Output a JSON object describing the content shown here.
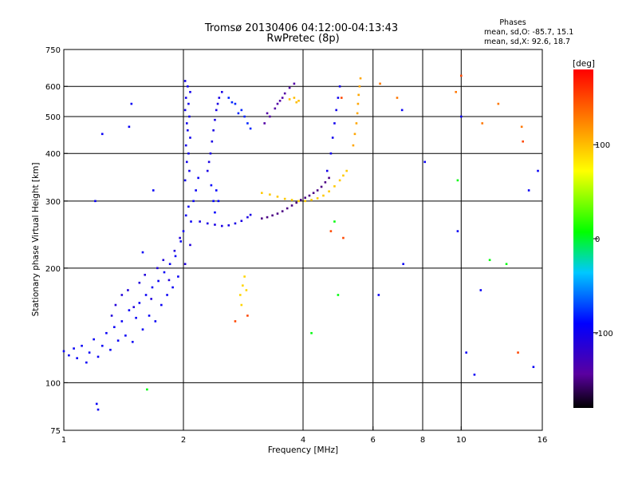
{
  "chart_data": {
    "type": "scatter",
    "title": "Tromsø 20130406 04:12:00-04:13:43",
    "subtitle": "RwPretec (8p)",
    "xlabel": "Frequency [MHz]",
    "ylabel": "Stationary phase Virtual Height [km]",
    "x_scale": "log",
    "y_scale": "log",
    "xlim": [
      1,
      16
    ],
    "ylim": [
      75,
      750
    ],
    "x_ticks": [
      {
        "value": 1,
        "label": "1"
      },
      {
        "value": 2,
        "label": "2"
      },
      {
        "value": 4,
        "label": "4"
      },
      {
        "value": 6,
        "label": "6"
      },
      {
        "value": 8,
        "label": "8"
      },
      {
        "value": 10,
        "label": "10"
      },
      {
        "value": 16,
        "label": "16"
      }
    ],
    "y_ticks": [
      {
        "value": 75,
        "label": "75"
      },
      {
        "value": 100,
        "label": "100"
      },
      {
        "value": 200,
        "label": "200"
      },
      {
        "value": 300,
        "label": "300"
      },
      {
        "value": 400,
        "label": "400"
      },
      {
        "value": 500,
        "label": "500"
      },
      {
        "value": 600,
        "label": "600"
      },
      {
        "value": 750,
        "label": "750"
      }
    ],
    "gridlines_x": [
      2,
      4,
      6,
      8,
      10
    ],
    "gridlines_y": [
      100,
      200,
      300,
      400,
      500,
      600
    ],
    "grid": true,
    "stats": {
      "heading": "Phases",
      "line_o": "mean, sd,O: -85.7, 15.1",
      "line_x": "mean, sd,X:  92.6, 18.7"
    },
    "colorbar": {
      "label": "[deg]",
      "range": [
        -180,
        180
      ],
      "ticks": [
        {
          "value": 100,
          "label": "100"
        },
        {
          "value": 0,
          "label": "0"
        },
        {
          "value": -100,
          "label": "-100"
        }
      ],
      "placement": "right"
    },
    "series": [
      {
        "phase": -95,
        "points": [
          [
            1.0,
            121
          ],
          [
            1.03,
            118
          ],
          [
            1.06,
            123
          ],
          [
            1.08,
            116
          ],
          [
            1.11,
            125
          ],
          [
            1.14,
            113
          ],
          [
            1.16,
            120
          ],
          [
            1.19,
            130
          ],
          [
            1.22,
            117
          ],
          [
            1.25,
            125
          ],
          [
            1.28,
            135
          ],
          [
            1.31,
            122
          ],
          [
            1.34,
            140
          ],
          [
            1.37,
            129
          ],
          [
            1.4,
            145
          ],
          [
            1.43,
            133
          ],
          [
            1.46,
            155
          ],
          [
            1.49,
            128
          ],
          [
            1.52,
            148
          ],
          [
            1.55,
            162
          ],
          [
            1.58,
            138
          ],
          [
            1.61,
            170
          ],
          [
            1.64,
            150
          ],
          [
            1.67,
            178
          ],
          [
            1.7,
            145
          ],
          [
            1.73,
            185
          ],
          [
            1.76,
            160
          ],
          [
            1.79,
            195
          ],
          [
            1.82,
            170
          ],
          [
            1.85,
            205
          ],
          [
            1.88,
            178
          ],
          [
            1.91,
            215
          ],
          [
            1.94,
            190
          ],
          [
            1.97,
            235
          ],
          [
            2.0,
            250
          ],
          [
            2.03,
            275
          ],
          [
            2.06,
            290
          ],
          [
            2.09,
            265
          ],
          [
            2.12,
            300
          ],
          [
            2.15,
            320
          ],
          [
            2.18,
            345
          ]
        ]
      },
      {
        "phase": -110,
        "points": [
          [
            1.32,
            150
          ],
          [
            1.35,
            160
          ],
          [
            1.4,
            170
          ],
          [
            1.45,
            175
          ],
          [
            1.5,
            158
          ],
          [
            1.55,
            183
          ],
          [
            1.6,
            192
          ],
          [
            1.66,
            166
          ],
          [
            1.72,
            200
          ],
          [
            1.78,
            210
          ],
          [
            1.84,
            186
          ],
          [
            1.9,
            222
          ],
          [
            1.96,
            240
          ],
          [
            2.02,
            205
          ],
          [
            2.08,
            230
          ]
        ]
      },
      {
        "phase": -100,
        "points": [
          [
            2.02,
            620
          ],
          [
            2.05,
            600
          ],
          [
            2.08,
            580
          ],
          [
            2.03,
            560
          ],
          [
            2.06,
            540
          ],
          [
            2.02,
            520
          ],
          [
            2.07,
            500
          ],
          [
            2.04,
            480
          ],
          [
            2.05,
            460
          ],
          [
            2.08,
            440
          ],
          [
            2.03,
            420
          ],
          [
            2.06,
            400
          ],
          [
            2.04,
            380
          ],
          [
            2.07,
            360
          ],
          [
            2.02,
            340
          ]
        ]
      },
      {
        "phase": -105,
        "points": [
          [
            2.2,
            265
          ],
          [
            2.3,
            262
          ],
          [
            2.4,
            260
          ],
          [
            2.5,
            258
          ],
          [
            2.6,
            259
          ],
          [
            2.7,
            262
          ],
          [
            2.8,
            266
          ],
          [
            2.9,
            272
          ],
          [
            2.95,
            276
          ]
        ]
      },
      {
        "phase": -105,
        "points": [
          [
            2.3,
            360
          ],
          [
            2.32,
            380
          ],
          [
            2.34,
            400
          ],
          [
            2.36,
            430
          ],
          [
            2.38,
            460
          ],
          [
            2.4,
            490
          ],
          [
            2.42,
            520
          ],
          [
            2.44,
            540
          ],
          [
            2.46,
            560
          ],
          [
            2.5,
            580
          ]
        ]
      },
      {
        "phase": -80,
        "points": [
          [
            2.6,
            560
          ],
          [
            2.7,
            540
          ],
          [
            2.8,
            520
          ],
          [
            2.85,
            500
          ],
          [
            2.9,
            480
          ],
          [
            2.95,
            465
          ],
          [
            2.75,
            510
          ],
          [
            2.65,
            545
          ]
        ]
      },
      {
        "phase": -90,
        "points": [
          [
            2.35,
            330
          ],
          [
            2.38,
            300
          ],
          [
            2.4,
            280
          ],
          [
            2.42,
            320
          ],
          [
            2.45,
            300
          ]
        ]
      },
      {
        "phase": -150,
        "points": [
          [
            3.15,
            270
          ],
          [
            3.25,
            272
          ],
          [
            3.35,
            275
          ],
          [
            3.45,
            278
          ],
          [
            3.55,
            282
          ],
          [
            3.65,
            287
          ],
          [
            3.75,
            292
          ],
          [
            3.85,
            297
          ],
          [
            3.95,
            302
          ],
          [
            4.05,
            306
          ],
          [
            4.15,
            310
          ],
          [
            4.25,
            315
          ],
          [
            4.35,
            320
          ],
          [
            4.45,
            327
          ],
          [
            4.55,
            336
          ],
          [
            4.65,
            345
          ]
        ]
      },
      {
        "phase": -140,
        "points": [
          [
            3.2,
            480
          ],
          [
            3.3,
            500
          ],
          [
            3.4,
            525
          ],
          [
            3.5,
            550
          ],
          [
            3.6,
            575
          ],
          [
            3.7,
            595
          ],
          [
            3.8,
            610
          ],
          [
            3.25,
            510
          ],
          [
            3.45,
            540
          ],
          [
            3.55,
            560
          ]
        ]
      },
      {
        "phase": 95,
        "points": [
          [
            3.15,
            315
          ],
          [
            3.3,
            312
          ],
          [
            3.45,
            308
          ],
          [
            3.6,
            304
          ],
          [
            3.75,
            302
          ],
          [
            3.9,
            300
          ],
          [
            4.05,
            300
          ],
          [
            4.2,
            302
          ],
          [
            4.35,
            305
          ],
          [
            4.5,
            310
          ],
          [
            4.65,
            318
          ],
          [
            4.8,
            328
          ],
          [
            4.95,
            340
          ],
          [
            5.05,
            350
          ],
          [
            5.15,
            360
          ]
        ]
      },
      {
        "phase": 110,
        "points": [
          [
            5.35,
            420
          ],
          [
            5.4,
            450
          ],
          [
            5.45,
            480
          ],
          [
            5.48,
            510
          ],
          [
            5.5,
            540
          ],
          [
            5.52,
            570
          ],
          [
            5.55,
            600
          ],
          [
            5.58,
            630
          ]
        ]
      },
      {
        "phase": -100,
        "points": [
          [
            4.6,
            360
          ],
          [
            4.7,
            400
          ],
          [
            4.75,
            440
          ],
          [
            4.8,
            480
          ],
          [
            4.85,
            520
          ],
          [
            4.9,
            560
          ],
          [
            4.95,
            600
          ]
        ]
      },
      {
        "phase": 100,
        "points": [
          [
            3.9,
            550
          ],
          [
            3.8,
            560
          ],
          [
            3.7,
            555
          ],
          [
            3.85,
            545
          ]
        ]
      },
      {
        "phase": 130,
        "points": [
          [
            6.25,
            610
          ],
          [
            6.9,
            560
          ],
          [
            9.7,
            580
          ],
          [
            11.3,
            480
          ],
          [
            14.2,
            470
          ],
          [
            12.4,
            540
          ]
        ]
      },
      {
        "phase": -95,
        "points": [
          [
            1.25,
            450
          ],
          [
            1.48,
            540
          ],
          [
            1.46,
            470
          ],
          [
            1.68,
            320
          ],
          [
            1.58,
            220
          ],
          [
            1.2,
            300
          ],
          [
            7.1,
            520
          ],
          [
            8.1,
            380
          ],
          [
            10.0,
            500
          ],
          [
            11.2,
            175
          ],
          [
            14.8,
            320
          ],
          [
            15.6,
            360
          ],
          [
            9.8,
            250
          ],
          [
            6.2,
            170
          ],
          [
            7.15,
            205
          ],
          [
            15.2,
            110
          ],
          [
            10.3,
            120
          ],
          [
            10.8,
            105
          ],
          [
            1.22,
            85
          ],
          [
            1.21,
            88
          ]
        ]
      },
      {
        "phase": 5,
        "points": [
          [
            4.9,
            170
          ],
          [
            4.8,
            265
          ],
          [
            4.2,
            135
          ],
          [
            11.8,
            210
          ],
          [
            13.0,
            205
          ],
          [
            9.8,
            340
          ],
          [
            1.62,
            96
          ]
        ]
      },
      {
        "phase": 150,
        "points": [
          [
            2.7,
            145
          ],
          [
            2.9,
            150
          ],
          [
            5.0,
            560
          ],
          [
            4.7,
            250
          ],
          [
            5.05,
            240
          ],
          [
            13.9,
            120
          ],
          [
            10.0,
            640
          ],
          [
            14.3,
            430
          ]
        ]
      },
      {
        "phase": 90,
        "points": [
          [
            2.78,
            170
          ],
          [
            2.82,
            180
          ],
          [
            2.85,
            190
          ],
          [
            2.8,
            160
          ],
          [
            2.88,
            175
          ]
        ]
      }
    ]
  }
}
